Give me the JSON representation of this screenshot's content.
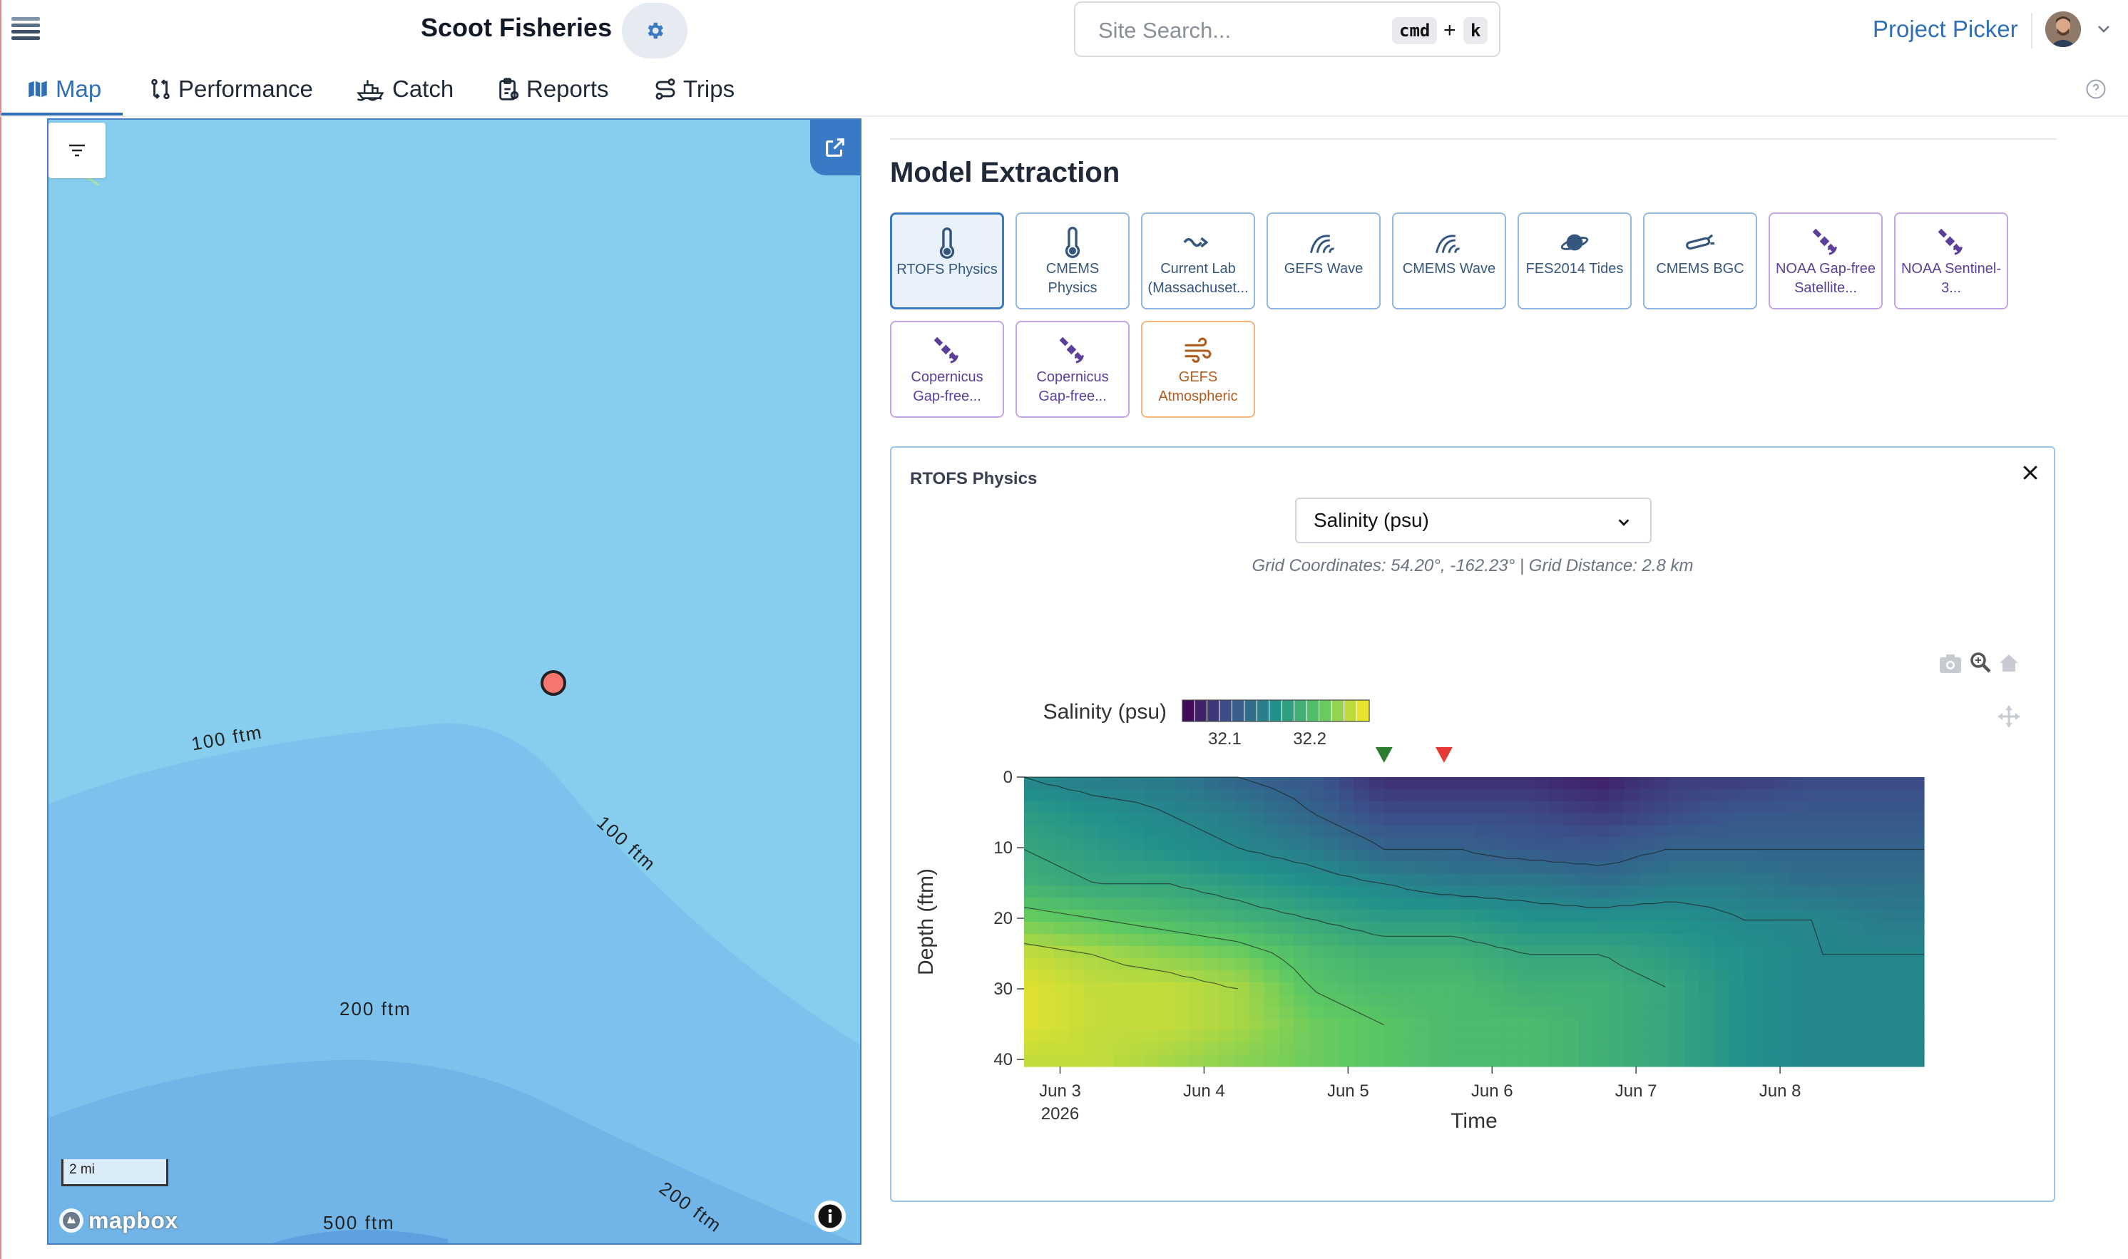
{
  "header": {
    "app_name": "Scoot Fisheries",
    "search_placeholder": "Site Search...",
    "shortcut_cmd": "cmd",
    "shortcut_plus": "+",
    "shortcut_k": "k",
    "project_picker": "Project Picker"
  },
  "tabs": [
    {
      "label": "Map",
      "icon": "map-icon",
      "active": true
    },
    {
      "label": "Performance",
      "icon": "branch-icon"
    },
    {
      "label": "Catch",
      "icon": "boat-icon"
    },
    {
      "label": "Reports",
      "icon": "clipboard-icon"
    },
    {
      "label": "Trips",
      "icon": "route-icon"
    }
  ],
  "map": {
    "contour_labels": [
      "100 ftm",
      "100 ftm",
      "200 ftm",
      "200 ftm",
      "500 ftm"
    ],
    "scale_label": "2 mi",
    "attribution": "mapbox",
    "colors": {
      "shallow": "#87cdee",
      "mid": "#7dc1ea",
      "deep": "#6eb2e6",
      "deepest": "#5c9fe0"
    }
  },
  "model_extraction": {
    "title": "Model Extraction",
    "models": [
      {
        "label": "RTOFS Physics",
        "icon": "thermometer-icon",
        "style": "blue",
        "active": true
      },
      {
        "label": "CMEMS Physics",
        "icon": "thermometer-icon",
        "style": "blue"
      },
      {
        "label": "Current Lab (Massachuset...",
        "icon": "current-icon",
        "style": "blue"
      },
      {
        "label": "GEFS Wave",
        "icon": "wave-icon",
        "style": "blue"
      },
      {
        "label": "CMEMS Wave",
        "icon": "wave-icon",
        "style": "blue"
      },
      {
        "label": "FES2014 Tides",
        "icon": "planet-icon",
        "style": "blue"
      },
      {
        "label": "CMEMS BGC",
        "icon": "probe-icon",
        "style": "blue"
      },
      {
        "label": "NOAA Gap-free Satellite...",
        "icon": "satellite-icon",
        "style": "purple"
      },
      {
        "label": "NOAA Sentinel-3...",
        "icon": "satellite-icon",
        "style": "purple"
      },
      {
        "label": "Copernicus Gap-free...",
        "icon": "satellite-icon",
        "style": "purple"
      },
      {
        "label": "Copernicus Gap-free...",
        "icon": "satellite-icon",
        "style": "purple"
      },
      {
        "label": "GEFS Atmospheric",
        "icon": "wind-icon",
        "style": "orange"
      }
    ]
  },
  "detail": {
    "title": "RTOFS Physics",
    "variable": "Salinity (psu)",
    "grid_info": "Grid Coordinates: 54.20°, -162.23° | Grid Distance: 2.8 km"
  },
  "chart_data": {
    "type": "heatmap",
    "colorbar_title": "Salinity (psu)",
    "colorbar_ticks": [
      "32.1",
      "32.2"
    ],
    "colorscale": [
      "#440154",
      "#3b528b",
      "#21918c",
      "#5ec962",
      "#fde725"
    ],
    "zrange": [
      32.05,
      32.27
    ],
    "xlabel": "Time",
    "ylabel": "Depth (ftm)",
    "x_ticks": [
      "Jun 3",
      "Jun 4",
      "Jun 5",
      "Jun 6",
      "Jun 7",
      "Jun 8"
    ],
    "x_tick_sub": "2026",
    "xrange": [
      "Jun 2 18:00",
      "Jun 9 00:00"
    ],
    "y_ticks": [
      "0",
      "10",
      "20",
      "30",
      "40"
    ],
    "yrange": [
      0,
      41
    ],
    "y_reversed": true,
    "markers": [
      {
        "time": "Jun 5 06:00",
        "color": "#2e7d32"
      },
      {
        "time": "Jun 5 16:00",
        "color": "#e53935"
      }
    ],
    "depths": [
      0,
      5,
      10,
      15,
      20,
      25,
      30,
      35,
      40
    ],
    "times": [
      "Jun 2 18:00",
      "Jun 3 06:00",
      "Jun 3 18:00",
      "Jun 4 06:00",
      "Jun 4 18:00",
      "Jun 5 06:00",
      "Jun 5 18:00",
      "Jun 6 06:00",
      "Jun 6 18:00",
      "Jun 7 06:00",
      "Jun 7 18:00",
      "Jun 8 06:00",
      "Jun 8 18:00"
    ],
    "values": [
      [
        32.15,
        32.14,
        32.14,
        32.12,
        32.11,
        32.08,
        32.08,
        32.08,
        32.07,
        32.09,
        32.09,
        32.1,
        32.1
      ],
      [
        32.17,
        32.16,
        32.15,
        32.14,
        32.12,
        32.1,
        32.1,
        32.1,
        32.09,
        32.1,
        32.11,
        32.11,
        32.11
      ],
      [
        32.18,
        32.17,
        32.16,
        32.15,
        32.14,
        32.12,
        32.12,
        32.11,
        32.11,
        32.12,
        32.12,
        32.12,
        32.12
      ],
      [
        32.19,
        32.18,
        32.18,
        32.17,
        32.16,
        32.15,
        32.14,
        32.14,
        32.13,
        32.14,
        32.14,
        32.13,
        32.13
      ],
      [
        32.22,
        32.21,
        32.2,
        32.19,
        32.18,
        32.17,
        32.17,
        32.16,
        32.16,
        32.16,
        32.15,
        32.15,
        32.14
      ],
      [
        32.25,
        32.24,
        32.23,
        32.22,
        32.2,
        32.19,
        32.19,
        32.18,
        32.18,
        32.17,
        32.16,
        32.15,
        32.15
      ],
      [
        32.26,
        32.25,
        32.25,
        32.24,
        32.21,
        32.2,
        32.2,
        32.19,
        32.19,
        32.18,
        32.16,
        32.15,
        32.15
      ],
      [
        32.26,
        32.25,
        32.25,
        32.24,
        32.22,
        32.21,
        32.2,
        32.2,
        32.19,
        32.18,
        32.16,
        32.15,
        32.15
      ],
      [
        32.25,
        32.25,
        32.24,
        32.23,
        32.22,
        32.21,
        32.2,
        32.2,
        32.19,
        32.18,
        32.16,
        32.15,
        32.15
      ]
    ]
  }
}
